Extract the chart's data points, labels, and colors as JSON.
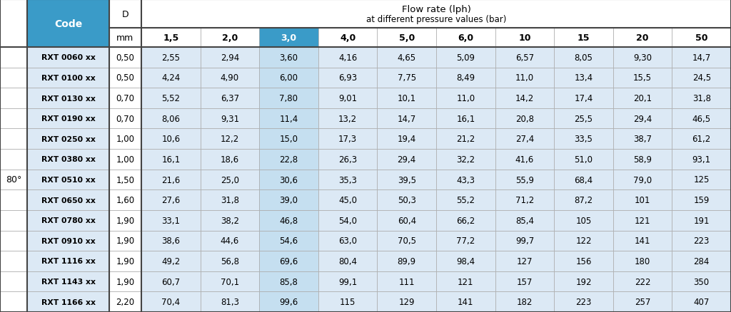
{
  "title_line1": "Flow rate (lph)",
  "title_line2": "at different pressure values (bar)",
  "angle_label": "80°",
  "pressure_headers": [
    "1,5",
    "2,0",
    "3,0",
    "4,0",
    "5,0",
    "6,0",
    "10",
    "15",
    "20",
    "50"
  ],
  "highlighted_pressure_idx": 2,
  "codes": [
    "RXT 0060 xx",
    "RXT 0100 xx",
    "RXT 0130 xx",
    "RXT 0190 xx",
    "RXT 0250 xx",
    "RXT 0380 xx",
    "RXT 0510 xx",
    "RXT 0650 xx",
    "RXT 0780 xx",
    "RXT 0910 xx",
    "RXT 1116 xx",
    "RXT 1143 xx",
    "RXT 1166 xx"
  ],
  "D_values": [
    "0,50",
    "0,50",
    "0,70",
    "0,70",
    "1,00",
    "1,00",
    "1,50",
    "1,60",
    "1,90",
    "1,90",
    "1,90",
    "1,90",
    "2,20"
  ],
  "flow_data": [
    [
      "2,55",
      "2,94",
      "3,60",
      "4,16",
      "4,65",
      "5,09",
      "6,57",
      "8,05",
      "9,30",
      "14,7"
    ],
    [
      "4,24",
      "4,90",
      "6,00",
      "6,93",
      "7,75",
      "8,49",
      "11,0",
      "13,4",
      "15,5",
      "24,5"
    ],
    [
      "5,52",
      "6,37",
      "7,80",
      "9,01",
      "10,1",
      "11,0",
      "14,2",
      "17,4",
      "20,1",
      "31,8"
    ],
    [
      "8,06",
      "9,31",
      "11,4",
      "13,2",
      "14,7",
      "16,1",
      "20,8",
      "25,5",
      "29,4",
      "46,5"
    ],
    [
      "10,6",
      "12,2",
      "15,0",
      "17,3",
      "19,4",
      "21,2",
      "27,4",
      "33,5",
      "38,7",
      "61,2"
    ],
    [
      "16,1",
      "18,6",
      "22,8",
      "26,3",
      "29,4",
      "32,2",
      "41,6",
      "51,0",
      "58,9",
      "93,1"
    ],
    [
      "21,6",
      "25,0",
      "30,6",
      "35,3",
      "39,5",
      "43,3",
      "55,9",
      "68,4",
      "79,0",
      "125"
    ],
    [
      "27,6",
      "31,8",
      "39,0",
      "45,0",
      "50,3",
      "55,2",
      "71,2",
      "87,2",
      "101",
      "159"
    ],
    [
      "33,1",
      "38,2",
      "46,8",
      "54,0",
      "60,4",
      "66,2",
      "85,4",
      "105",
      "121",
      "191"
    ],
    [
      "38,6",
      "44,6",
      "54,6",
      "63,0",
      "70,5",
      "77,2",
      "99,7",
      "122",
      "141",
      "223"
    ],
    [
      "49,2",
      "56,8",
      "69,6",
      "80,4",
      "89,9",
      "98,4",
      "127",
      "156",
      "180",
      "284"
    ],
    [
      "60,7",
      "70,1",
      "85,8",
      "99,1",
      "111",
      "121",
      "157",
      "192",
      "222",
      "350"
    ],
    [
      "70,4",
      "81,3",
      "99,6",
      "115",
      "129",
      "141",
      "182",
      "223",
      "257",
      "407"
    ]
  ],
  "header_bg_color": "#3a9bc8",
  "row_bg_light": "#dce9f5",
  "row_bg_white": "#ffffff",
  "highlight_data_col_bg": "#c5dff0",
  "grid_color": "#aaaaaa",
  "border_color": "#555555"
}
